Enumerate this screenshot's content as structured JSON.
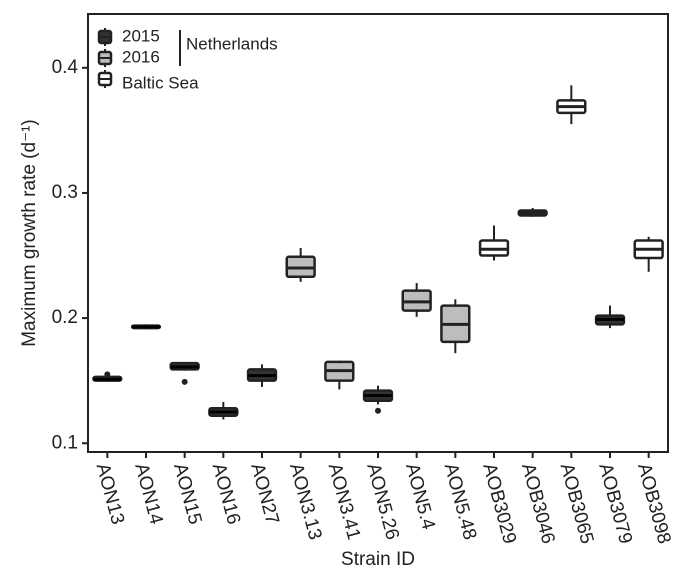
{
  "chart_data": {
    "type": "box",
    "y_label": "Maximum growth rate (d⁻¹)",
    "x_label": "Strain ID",
    "categories": [
      "AON13",
      "AON14",
      "AON15",
      "AON16",
      "AON27",
      "AON3.13",
      "AON3.41",
      "AON5.26",
      "AON5.4",
      "AON5.48",
      "AOB3029",
      "AOB3046",
      "AOB3065",
      "AOB3079",
      "AOB3098"
    ],
    "low": [
      0.149,
      0.191,
      0.158,
      0.119,
      0.145,
      0.229,
      0.143,
      0.131,
      0.201,
      0.172,
      0.246,
      0.281,
      0.355,
      0.192,
      0.237
    ],
    "q1": [
      0.15,
      0.192,
      0.159,
      0.122,
      0.15,
      0.233,
      0.15,
      0.134,
      0.206,
      0.181,
      0.25,
      0.282,
      0.364,
      0.195,
      0.248
    ],
    "median": [
      0.151,
      0.193,
      0.161,
      0.125,
      0.154,
      0.24,
      0.158,
      0.138,
      0.213,
      0.195,
      0.255,
      0.284,
      0.369,
      0.199,
      0.255
    ],
    "q3": [
      0.153,
      0.194,
      0.164,
      0.128,
      0.159,
      0.249,
      0.165,
      0.142,
      0.222,
      0.21,
      0.262,
      0.286,
      0.374,
      0.202,
      0.262
    ],
    "high": [
      0.154,
      0.195,
      0.165,
      0.133,
      0.163,
      0.256,
      0.166,
      0.146,
      0.228,
      0.215,
      0.274,
      0.288,
      0.386,
      0.21,
      0.265
    ],
    "outliers": [
      [
        0.155
      ],
      [],
      [
        0.149
      ],
      [],
      [],
      [],
      [],
      [
        0.126
      ],
      [],
      [],
      [],
      [],
      [],
      [],
      []
    ],
    "colors": [
      "#333333",
      "#333333",
      "#333333",
      "#333333",
      "#333333",
      "#bdbdbd",
      "#bdbdbd",
      "#333333",
      "#bdbdbd",
      "#bdbdbd",
      "#ffffff",
      "#ffffff",
      "#ffffff",
      "#333333",
      "#ffffff"
    ],
    "legend": [
      {
        "name": "2015",
        "color": "#333333"
      },
      {
        "name": "2016",
        "color": "#bdbdbd"
      },
      {
        "name": "Baltic Sea",
        "color": "#ffffff"
      }
    ],
    "legend_group": "Netherlands",
    "ylim": [
      0.093,
      0.443
    ],
    "yticks": [
      0.1,
      0.2,
      0.3,
      0.4
    ]
  }
}
